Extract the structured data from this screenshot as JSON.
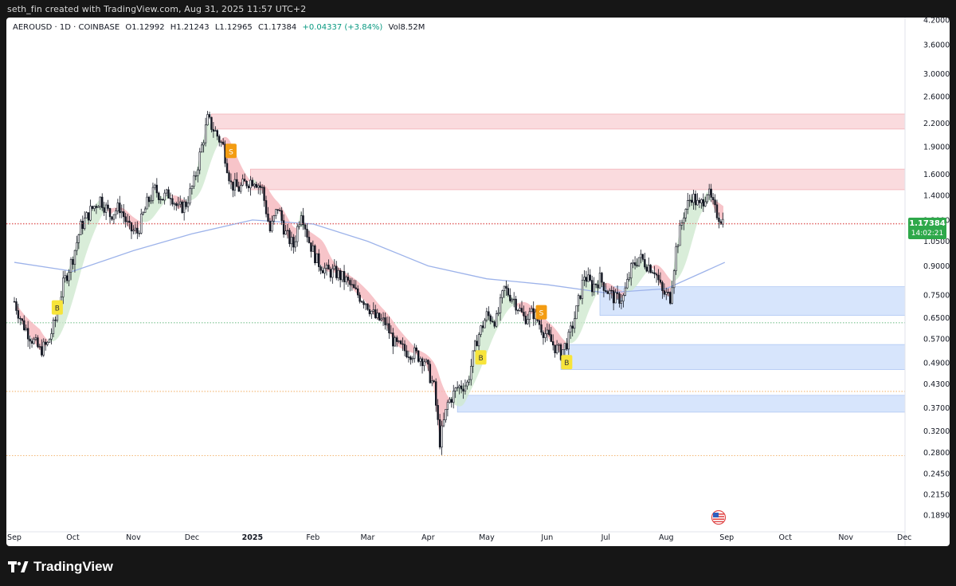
{
  "header": {
    "credit": "seth_fin created with TradingView.com, Aug 31, 2025 11:57 UTC+2"
  },
  "legend": {
    "symbol": "AEROUSD · 1D · COINBASE",
    "open": "O1.12992",
    "high": "H1.21243",
    "low": "L1.12965",
    "close": "C1.17384",
    "change": "+0.04337 (+3.84%)",
    "volume": "Vol8.52M"
  },
  "price_tag": {
    "price": "1.17384",
    "countdown": "14:02:21"
  },
  "footer": {
    "brand": "TradingView"
  },
  "colors": {
    "background": "#ffffff",
    "candle": "#131722",
    "red_zone": "#f7c8cc",
    "blue_zone": "#c9dcfb",
    "up_cloud": "#cfe8cf",
    "down_cloud": "#f5b5bb",
    "ma_line": "#9db3ea",
    "current_price_line": "#e06666",
    "price_tag": "#2ea84a",
    "signal_buy": "#f7e43a",
    "signal_sell": "#f39c12"
  },
  "chart_data": {
    "type": "candlestick",
    "symbol": "AEROUSD",
    "interval": "1D",
    "exchange": "COINBASE",
    "scale": "log",
    "x_tick_labels": [
      "Sep",
      "Oct",
      "Nov",
      "Dec",
      "2025",
      "Feb",
      "Mar",
      "Apr",
      "May",
      "Jun",
      "Jul",
      "Aug",
      "Sep",
      "Oct",
      "Nov",
      "Dec"
    ],
    "y_tick_labels": [
      "4.20000",
      "3.60000",
      "3.00000",
      "2.60000",
      "2.20000",
      "1.90000",
      "1.60000",
      "1.40000",
      "1.20000",
      "1.05000",
      "0.90000",
      "0.75000",
      "0.65000",
      "0.57000",
      "0.49000",
      "0.43000",
      "0.37000",
      "0.32000",
      "0.28000",
      "0.24500",
      "0.21500",
      "0.18900"
    ],
    "ylim": [
      0.18,
      4.3
    ],
    "last_price": 1.17384,
    "price_path": [
      [
        "2024-09-01",
        0.72
      ],
      [
        "2024-09-05",
        0.63
      ],
      [
        "2024-09-10",
        0.57
      ],
      [
        "2024-09-14",
        0.53
      ],
      [
        "2024-09-18",
        0.55
      ],
      [
        "2024-09-22",
        0.64
      ],
      [
        "2024-09-26",
        0.8
      ],
      [
        "2024-10-01",
        0.95
      ],
      [
        "2024-10-05",
        1.15
      ],
      [
        "2024-10-10",
        1.27
      ],
      [
        "2024-10-15",
        1.37
      ],
      [
        "2024-10-20",
        1.24
      ],
      [
        "2024-10-25",
        1.3
      ],
      [
        "2024-10-30",
        1.13
      ],
      [
        "2024-11-03",
        1.11
      ],
      [
        "2024-11-08",
        1.33
      ],
      [
        "2024-11-12",
        1.45
      ],
      [
        "2024-11-16",
        1.38
      ],
      [
        "2024-11-20",
        1.42
      ],
      [
        "2024-11-24",
        1.28
      ],
      [
        "2024-11-28",
        1.33
      ],
      [
        "2024-12-02",
        1.52
      ],
      [
        "2024-12-06",
        1.9
      ],
      [
        "2024-12-09",
        2.25
      ],
      [
        "2024-12-13",
        2.08
      ],
      [
        "2024-12-17",
        1.9
      ],
      [
        "2024-12-21",
        1.5
      ],
      [
        "2024-12-25",
        1.46
      ],
      [
        "2024-12-29",
        1.52
      ],
      [
        "2025-01-02",
        1.55
      ],
      [
        "2025-01-06",
        1.45
      ],
      [
        "2025-01-10",
        1.12
      ],
      [
        "2025-01-14",
        1.3
      ],
      [
        "2025-01-18",
        1.1
      ],
      [
        "2025-01-22",
        1.02
      ],
      [
        "2025-01-26",
        1.28
      ],
      [
        "2025-01-30",
        1.05
      ],
      [
        "2025-02-03",
        0.93
      ],
      [
        "2025-02-08",
        0.87
      ],
      [
        "2025-02-13",
        0.86
      ],
      [
        "2025-02-18",
        0.82
      ],
      [
        "2025-02-23",
        0.76
      ],
      [
        "2025-02-28",
        0.72
      ],
      [
        "2025-03-05",
        0.65
      ],
      [
        "2025-03-10",
        0.63
      ],
      [
        "2025-03-15",
        0.55
      ],
      [
        "2025-03-20",
        0.53
      ],
      [
        "2025-03-25",
        0.52
      ],
      [
        "2025-03-30",
        0.5
      ],
      [
        "2025-04-04",
        0.42
      ],
      [
        "2025-04-07",
        0.3
      ],
      [
        "2025-04-11",
        0.38
      ],
      [
        "2025-04-16",
        0.42
      ],
      [
        "2025-04-21",
        0.43
      ],
      [
        "2025-04-26",
        0.57
      ],
      [
        "2025-05-01",
        0.66
      ],
      [
        "2025-05-06",
        0.64
      ],
      [
        "2025-05-10",
        0.78
      ],
      [
        "2025-05-15",
        0.73
      ],
      [
        "2025-05-20",
        0.65
      ],
      [
        "2025-05-25",
        0.67
      ],
      [
        "2025-05-30",
        0.6
      ],
      [
        "2025-06-04",
        0.55
      ],
      [
        "2025-06-08",
        0.52
      ],
      [
        "2025-06-12",
        0.57
      ],
      [
        "2025-06-16",
        0.68
      ],
      [
        "2025-06-20",
        0.85
      ],
      [
        "2025-06-24",
        0.79
      ],
      [
        "2025-06-28",
        0.83
      ],
      [
        "2025-07-02",
        0.77
      ],
      [
        "2025-07-06",
        0.73
      ],
      [
        "2025-07-10",
        0.74
      ],
      [
        "2025-07-14",
        0.88
      ],
      [
        "2025-07-18",
        0.95
      ],
      [
        "2025-07-22",
        0.91
      ],
      [
        "2025-07-26",
        0.88
      ],
      [
        "2025-07-30",
        0.76
      ],
      [
        "2025-08-03",
        0.74
      ],
      [
        "2025-08-06",
        1.0
      ],
      [
        "2025-08-10",
        1.25
      ],
      [
        "2025-08-14",
        1.4
      ],
      [
        "2025-08-18",
        1.3
      ],
      [
        "2025-08-22",
        1.44
      ],
      [
        "2025-08-26",
        1.27
      ],
      [
        "2025-08-31",
        1.17384
      ]
    ],
    "zones": [
      {
        "kind": "supply",
        "low": 2.12,
        "high": 2.33,
        "start": "2024-12-11"
      },
      {
        "kind": "supply",
        "low": 1.45,
        "high": 1.65,
        "start": "2024-12-31"
      },
      {
        "kind": "demand",
        "low": 0.66,
        "high": 0.79,
        "start": "2025-06-28"
      },
      {
        "kind": "demand",
        "low": 0.47,
        "high": 0.55,
        "start": "2025-06-08"
      },
      {
        "kind": "demand",
        "low": 0.36,
        "high": 0.4,
        "start": "2025-04-16"
      }
    ],
    "horizontal_lines": [
      {
        "price": 1.17,
        "style": "dotted",
        "color": "#e06666"
      },
      {
        "price": 0.63,
        "style": "dotted",
        "color": "#3aa55a"
      },
      {
        "price": 0.41,
        "style": "dotted",
        "color": "#f0a14a"
      },
      {
        "price": 0.274,
        "style": "dotted",
        "color": "#f0a14a"
      }
    ],
    "moving_average": [
      [
        "2024-09-01",
        0.92
      ],
      [
        "2024-10-01",
        0.87
      ],
      [
        "2024-11-01",
        0.99
      ],
      [
        "2024-12-01",
        1.1
      ],
      [
        "2025-01-01",
        1.2
      ],
      [
        "2025-02-01",
        1.17
      ],
      [
        "2025-03-01",
        1.05
      ],
      [
        "2025-04-01",
        0.9
      ],
      [
        "2025-05-01",
        0.83
      ],
      [
        "2025-06-01",
        0.8
      ],
      [
        "2025-07-01",
        0.76
      ],
      [
        "2025-08-01",
        0.78
      ],
      [
        "2025-08-31",
        0.92
      ]
    ],
    "signals": [
      {
        "type": "B",
        "date": "2024-09-23",
        "price": 0.69
      },
      {
        "type": "S",
        "date": "2024-12-21",
        "price": 1.84
      },
      {
        "type": "B",
        "date": "2025-04-28",
        "price": 0.505
      },
      {
        "type": "S",
        "date": "2025-05-29",
        "price": 0.67
      },
      {
        "type": "B",
        "date": "2025-06-11",
        "price": 0.49
      }
    ]
  }
}
